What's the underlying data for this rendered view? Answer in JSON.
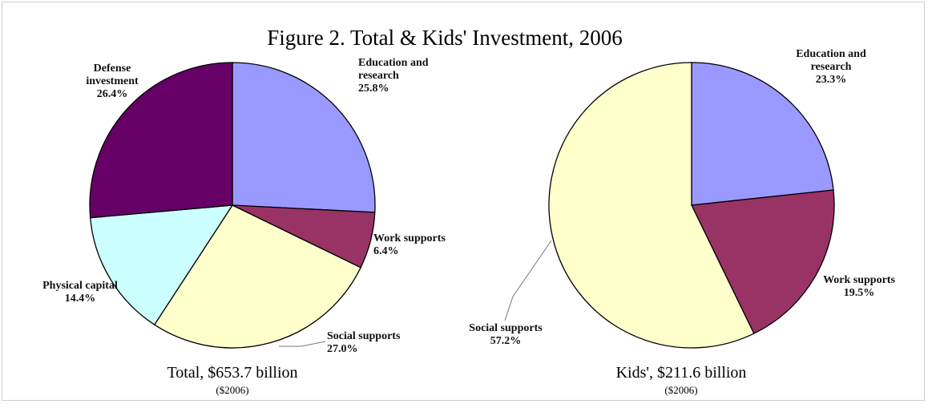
{
  "title": "Figure 2. Total & Kids' Investment, 2006",
  "chart_data": [
    {
      "type": "pie",
      "caption": "Total, $653.7 billion",
      "subcaption": "($2006)",
      "slices": [
        {
          "name": "Education and research",
          "label_lines": [
            "Education and",
            "research"
          ],
          "pct_label": "25.8%",
          "value": 25.8,
          "color": "#9999ff"
        },
        {
          "name": "Work supports",
          "label_lines": [
            "Work supports"
          ],
          "pct_label": "6.4%",
          "value": 6.4,
          "color": "#993366"
        },
        {
          "name": "Social supports",
          "label_lines": [
            "Social supports"
          ],
          "pct_label": "27.0%",
          "value": 27.0,
          "color": "#ffffcc"
        },
        {
          "name": "Physical capital",
          "label_lines": [
            "Physical capital"
          ],
          "pct_label": "14.4%",
          "value": 14.4,
          "color": "#ccffff"
        },
        {
          "name": "Defense investment",
          "label_lines": [
            "Defense",
            "investment"
          ],
          "pct_label": "26.4%",
          "value": 26.4,
          "color": "#660066"
        }
      ]
    },
    {
      "type": "pie",
      "caption": "Kids', $211.6 billion",
      "subcaption": "($2006)",
      "slices": [
        {
          "name": "Education and research",
          "label_lines": [
            "Education and",
            "research"
          ],
          "pct_label": "23.3%",
          "value": 23.3,
          "color": "#9999ff"
        },
        {
          "name": "Work supports",
          "label_lines": [
            "Work supports"
          ],
          "pct_label": "19.5%",
          "value": 19.5,
          "color": "#993366"
        },
        {
          "name": "Social supports",
          "label_lines": [
            "Social supports"
          ],
          "pct_label": "57.2%",
          "value": 57.2,
          "color": "#ffffcc"
        }
      ]
    }
  ]
}
